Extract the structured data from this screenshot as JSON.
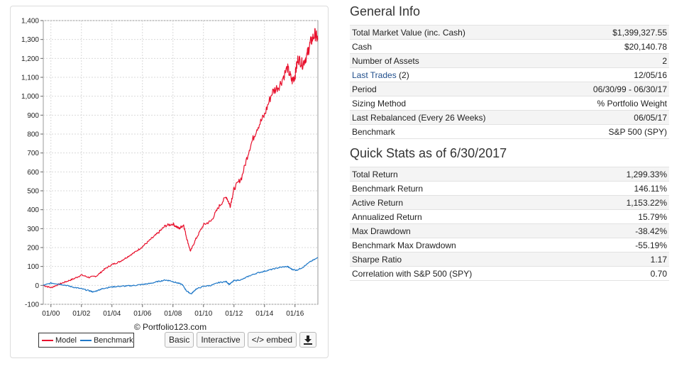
{
  "chart": {
    "copyright": "© Portfolio123.com",
    "buttons": {
      "basic": "Basic",
      "interactive": "Interactive",
      "embed": "</> embed"
    },
    "download_icon": "download-icon"
  },
  "chart_data": {
    "type": "line",
    "title": "",
    "xlabel": "",
    "ylabel": "",
    "xlim": [
      1999.5,
      2017.5
    ],
    "ylim": [
      -100,
      1400
    ],
    "yticks": [
      -100,
      0,
      100,
      200,
      300,
      400,
      500,
      600,
      700,
      800,
      900,
      1000,
      1100,
      1200,
      1300,
      1400
    ],
    "ytick_labels": [
      "-100",
      "0",
      "100",
      "200",
      "300",
      "400",
      "500",
      "600",
      "700",
      "800",
      "900",
      "1,000",
      "1,100",
      "1,200",
      "1,300",
      "1,400"
    ],
    "xticks": [
      2000,
      2002,
      2004,
      2006,
      2008,
      2010,
      2012,
      2014,
      2016
    ],
    "xtick_labels": [
      "01/00",
      "01/02",
      "01/04",
      "01/06",
      "01/08",
      "01/10",
      "01/12",
      "01/14",
      "01/16"
    ],
    "grid": true,
    "legend_position": "bottom-left",
    "series": [
      {
        "name": "Model",
        "color": "#e8112d",
        "points": [
          [
            1999.5,
            0
          ],
          [
            2000.0,
            -12
          ],
          [
            2000.5,
            5
          ],
          [
            2001.0,
            20
          ],
          [
            2001.5,
            35
          ],
          [
            2002.0,
            55
          ],
          [
            2002.5,
            42
          ],
          [
            2003.0,
            50
          ],
          [
            2003.5,
            85
          ],
          [
            2004.0,
            110
          ],
          [
            2004.5,
            125
          ],
          [
            2005.0,
            150
          ],
          [
            2005.5,
            175
          ],
          [
            2006.0,
            205
          ],
          [
            2006.5,
            240
          ],
          [
            2007.0,
            275
          ],
          [
            2007.5,
            315
          ],
          [
            2008.0,
            325
          ],
          [
            2008.4,
            300
          ],
          [
            2008.7,
            320
          ],
          [
            2008.9,
            250
          ],
          [
            2009.15,
            180
          ],
          [
            2009.5,
            245
          ],
          [
            2010.0,
            320
          ],
          [
            2010.5,
            340
          ],
          [
            2011.0,
            415
          ],
          [
            2011.5,
            470
          ],
          [
            2011.75,
            420
          ],
          [
            2012.0,
            510
          ],
          [
            2012.5,
            570
          ],
          [
            2013.0,
            720
          ],
          [
            2013.5,
            830
          ],
          [
            2014.0,
            900
          ],
          [
            2014.5,
            1020
          ],
          [
            2015.0,
            1060
          ],
          [
            2015.5,
            1150
          ],
          [
            2015.8,
            1080
          ],
          [
            2016.0,
            1110
          ],
          [
            2016.2,
            1200
          ],
          [
            2016.5,
            1170
          ],
          [
            2016.8,
            1220
          ],
          [
            2017.0,
            1280
          ],
          [
            2017.3,
            1330
          ],
          [
            2017.5,
            1299.33
          ]
        ]
      },
      {
        "name": "Benchmark",
        "color": "#1f78c8",
        "points": [
          [
            1999.5,
            0
          ],
          [
            2000.0,
            12
          ],
          [
            2000.5,
            8
          ],
          [
            2001.0,
            0
          ],
          [
            2001.5,
            -10
          ],
          [
            2002.0,
            -18
          ],
          [
            2002.5,
            -28
          ],
          [
            2002.8,
            -35
          ],
          [
            2003.2,
            -22
          ],
          [
            2003.5,
            -15
          ],
          [
            2004.0,
            -8
          ],
          [
            2004.5,
            -5
          ],
          [
            2005.0,
            -3
          ],
          [
            2005.5,
            0
          ],
          [
            2006.0,
            5
          ],
          [
            2006.5,
            10
          ],
          [
            2007.0,
            20
          ],
          [
            2007.5,
            28
          ],
          [
            2007.8,
            25
          ],
          [
            2008.2,
            15
          ],
          [
            2008.6,
            5
          ],
          [
            2008.9,
            -30
          ],
          [
            2009.2,
            -45
          ],
          [
            2009.5,
            -20
          ],
          [
            2010.0,
            -5
          ],
          [
            2010.5,
            0
          ],
          [
            2011.0,
            15
          ],
          [
            2011.5,
            20
          ],
          [
            2011.7,
            5
          ],
          [
            2012.0,
            25
          ],
          [
            2012.5,
            30
          ],
          [
            2013.0,
            50
          ],
          [
            2013.5,
            65
          ],
          [
            2014.0,
            75
          ],
          [
            2014.5,
            85
          ],
          [
            2015.0,
            95
          ],
          [
            2015.5,
            100
          ],
          [
            2015.8,
            85
          ],
          [
            2016.1,
            80
          ],
          [
            2016.5,
            95
          ],
          [
            2017.0,
            125
          ],
          [
            2017.5,
            146.11
          ]
        ]
      }
    ]
  },
  "general_info": {
    "title": "General Info",
    "rows": [
      {
        "label": "Total Market Value (inc. Cash)",
        "value": "$1,399,327.55"
      },
      {
        "label": "Cash",
        "value": "$20,140.78"
      },
      {
        "label": "Number of Assets",
        "value": "2"
      },
      {
        "label": "Last Trades",
        "label_suffix": " (2)",
        "value": "12/05/16"
      },
      {
        "label": "Period",
        "value": "06/30/99 - 06/30/17"
      },
      {
        "label": "Sizing Method",
        "value": "% Portfolio Weight"
      },
      {
        "label": "Last Rebalanced (Every 26 Weeks)",
        "value": "06/05/17"
      },
      {
        "label": "Benchmark",
        "value": "S&P 500 (SPY)"
      }
    ]
  },
  "quick_stats": {
    "title": "Quick Stats as of 6/30/2017",
    "rows": [
      {
        "label": "Total Return",
        "value": "1,299.33%"
      },
      {
        "label": "Benchmark Return",
        "value": "146.11%"
      },
      {
        "label": "Active Return",
        "value": "1,153.22%"
      },
      {
        "label": "Annualized Return",
        "value": "15.79%"
      },
      {
        "label": "Max Drawdown",
        "value": "-38.42%"
      },
      {
        "label": "Benchmark Max Drawdown",
        "value": "-55.19%"
      },
      {
        "label": "Sharpe Ratio",
        "value": "1.17"
      },
      {
        "label": "Correlation with S&P 500 (SPY)",
        "value": "0.70"
      }
    ]
  }
}
